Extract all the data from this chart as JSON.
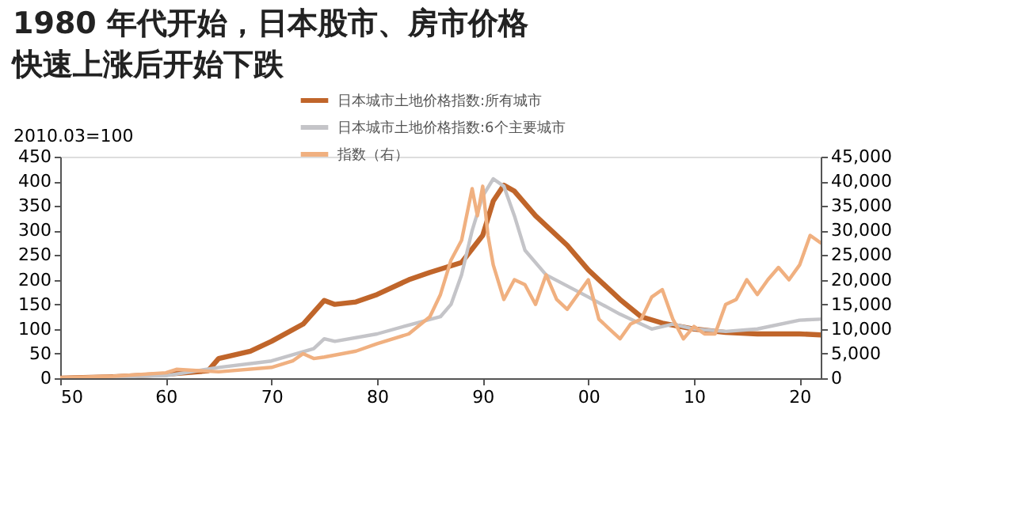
{
  "chart_data": {
    "type": "line",
    "title": "1980 年代开始，日本股市、房市价格快速上涨后开始下跌",
    "ylabel": "2010.03=100",
    "xlim": [
      1950,
      2022
    ],
    "xticks": [
      {
        "value": 1950,
        "label": "50"
      },
      {
        "value": 1960,
        "label": "60"
      },
      {
        "value": 1970,
        "label": "70"
      },
      {
        "value": 1980,
        "label": "80"
      },
      {
        "value": 1990,
        "label": "90"
      },
      {
        "value": 2000,
        "label": "00"
      },
      {
        "value": 2010,
        "label": "10"
      },
      {
        "value": 2020,
        "label": "20"
      }
    ],
    "ylim": [
      0,
      450
    ],
    "yticks": [
      0,
      50,
      100,
      150,
      200,
      250,
      300,
      350,
      400,
      450
    ],
    "y2lim": [
      0,
      45000
    ],
    "y2ticks": [
      {
        "value": 0,
        "label": "0"
      },
      {
        "value": 5000,
        "label": "5,000"
      },
      {
        "value": 10000,
        "label": "10,000"
      },
      {
        "value": 15000,
        "label": "15,000"
      },
      {
        "value": 20000,
        "label": "20,000"
      },
      {
        "value": 25000,
        "label": "25,000"
      },
      {
        "value": 30000,
        "label": "30,000"
      },
      {
        "value": 35000,
        "label": "35,000"
      },
      {
        "value": 40000,
        "label": "40,000"
      },
      {
        "value": 45000,
        "label": "45,000"
      }
    ],
    "grid": false,
    "legend": "top",
    "series": [
      {
        "name": "日本城市土地价格指数:所有城市",
        "color": "#c0652a",
        "x": [
          1950,
          1955,
          1960,
          1964,
          1965,
          1968,
          1970,
          1973,
          1975,
          1976,
          1978,
          1980,
          1983,
          1985,
          1988,
          1990,
          1991,
          1992,
          1993,
          1995,
          1998,
          2000,
          2003,
          2005,
          2007,
          2010,
          2013,
          2016,
          2020,
          2022
        ],
        "values": [
          0,
          3,
          8,
          15,
          40,
          55,
          75,
          110,
          158,
          150,
          155,
          170,
          200,
          215,
          235,
          290,
          360,
          392,
          380,
          330,
          270,
          220,
          160,
          125,
          112,
          100,
          93,
          90,
          90,
          88
        ]
      },
      {
        "name": "日本城市土地价格指数:6个主要城市",
        "color": "#c4c4c8",
        "x": [
          1950,
          1960,
          1965,
          1970,
          1974,
          1975,
          1976,
          1980,
          1983,
          1986,
          1987,
          1988,
          1989,
          1990,
          1991,
          1992,
          1993,
          1994,
          1996,
          2000,
          2003,
          2005,
          2006,
          2008,
          2010,
          2013,
          2016,
          2020,
          2022
        ],
        "values": [
          0,
          5,
          22,
          35,
          60,
          80,
          75,
          90,
          108,
          125,
          150,
          210,
          300,
          370,
          405,
          390,
          330,
          260,
          210,
          165,
          130,
          110,
          100,
          110,
          100,
          95,
          100,
          118,
          120
        ]
      },
      {
        "name": "指数（右）",
        "color": "#f0b080",
        "axis": "y2",
        "x": [
          1950,
          1955,
          1960,
          1961,
          1965,
          1970,
          1972,
          1973,
          1974,
          1975,
          1978,
          1980,
          1983,
          1985,
          1986,
          1987,
          1988,
          1989,
          1989.5,
          1990,
          1990.5,
          1991,
          1992,
          1993,
          1994,
          1995,
          1996,
          1997,
          1998,
          1999,
          2000,
          2001,
          2002,
          2003,
          2004,
          2005,
          2006,
          2007,
          2008,
          2009,
          2010,
          2011,
          2012,
          2013,
          2014,
          2015,
          2016,
          2017,
          2018,
          2019,
          2020,
          2021,
          2022
        ],
        "values": [
          100,
          400,
          1100,
          1800,
          1300,
          2200,
          3500,
          5000,
          4000,
          4300,
          5500,
          7000,
          9000,
          12500,
          17000,
          24000,
          28000,
          38500,
          33000,
          39000,
          29000,
          23000,
          16000,
          20000,
          19000,
          15000,
          21000,
          16000,
          14000,
          17000,
          20000,
          12000,
          10000,
          8000,
          11000,
          12000,
          16500,
          18000,
          12000,
          8000,
          10500,
          9000,
          9000,
          15000,
          16000,
          20000,
          17000,
          20000,
          22500,
          20000,
          23000,
          29000,
          27500
        ]
      }
    ]
  }
}
